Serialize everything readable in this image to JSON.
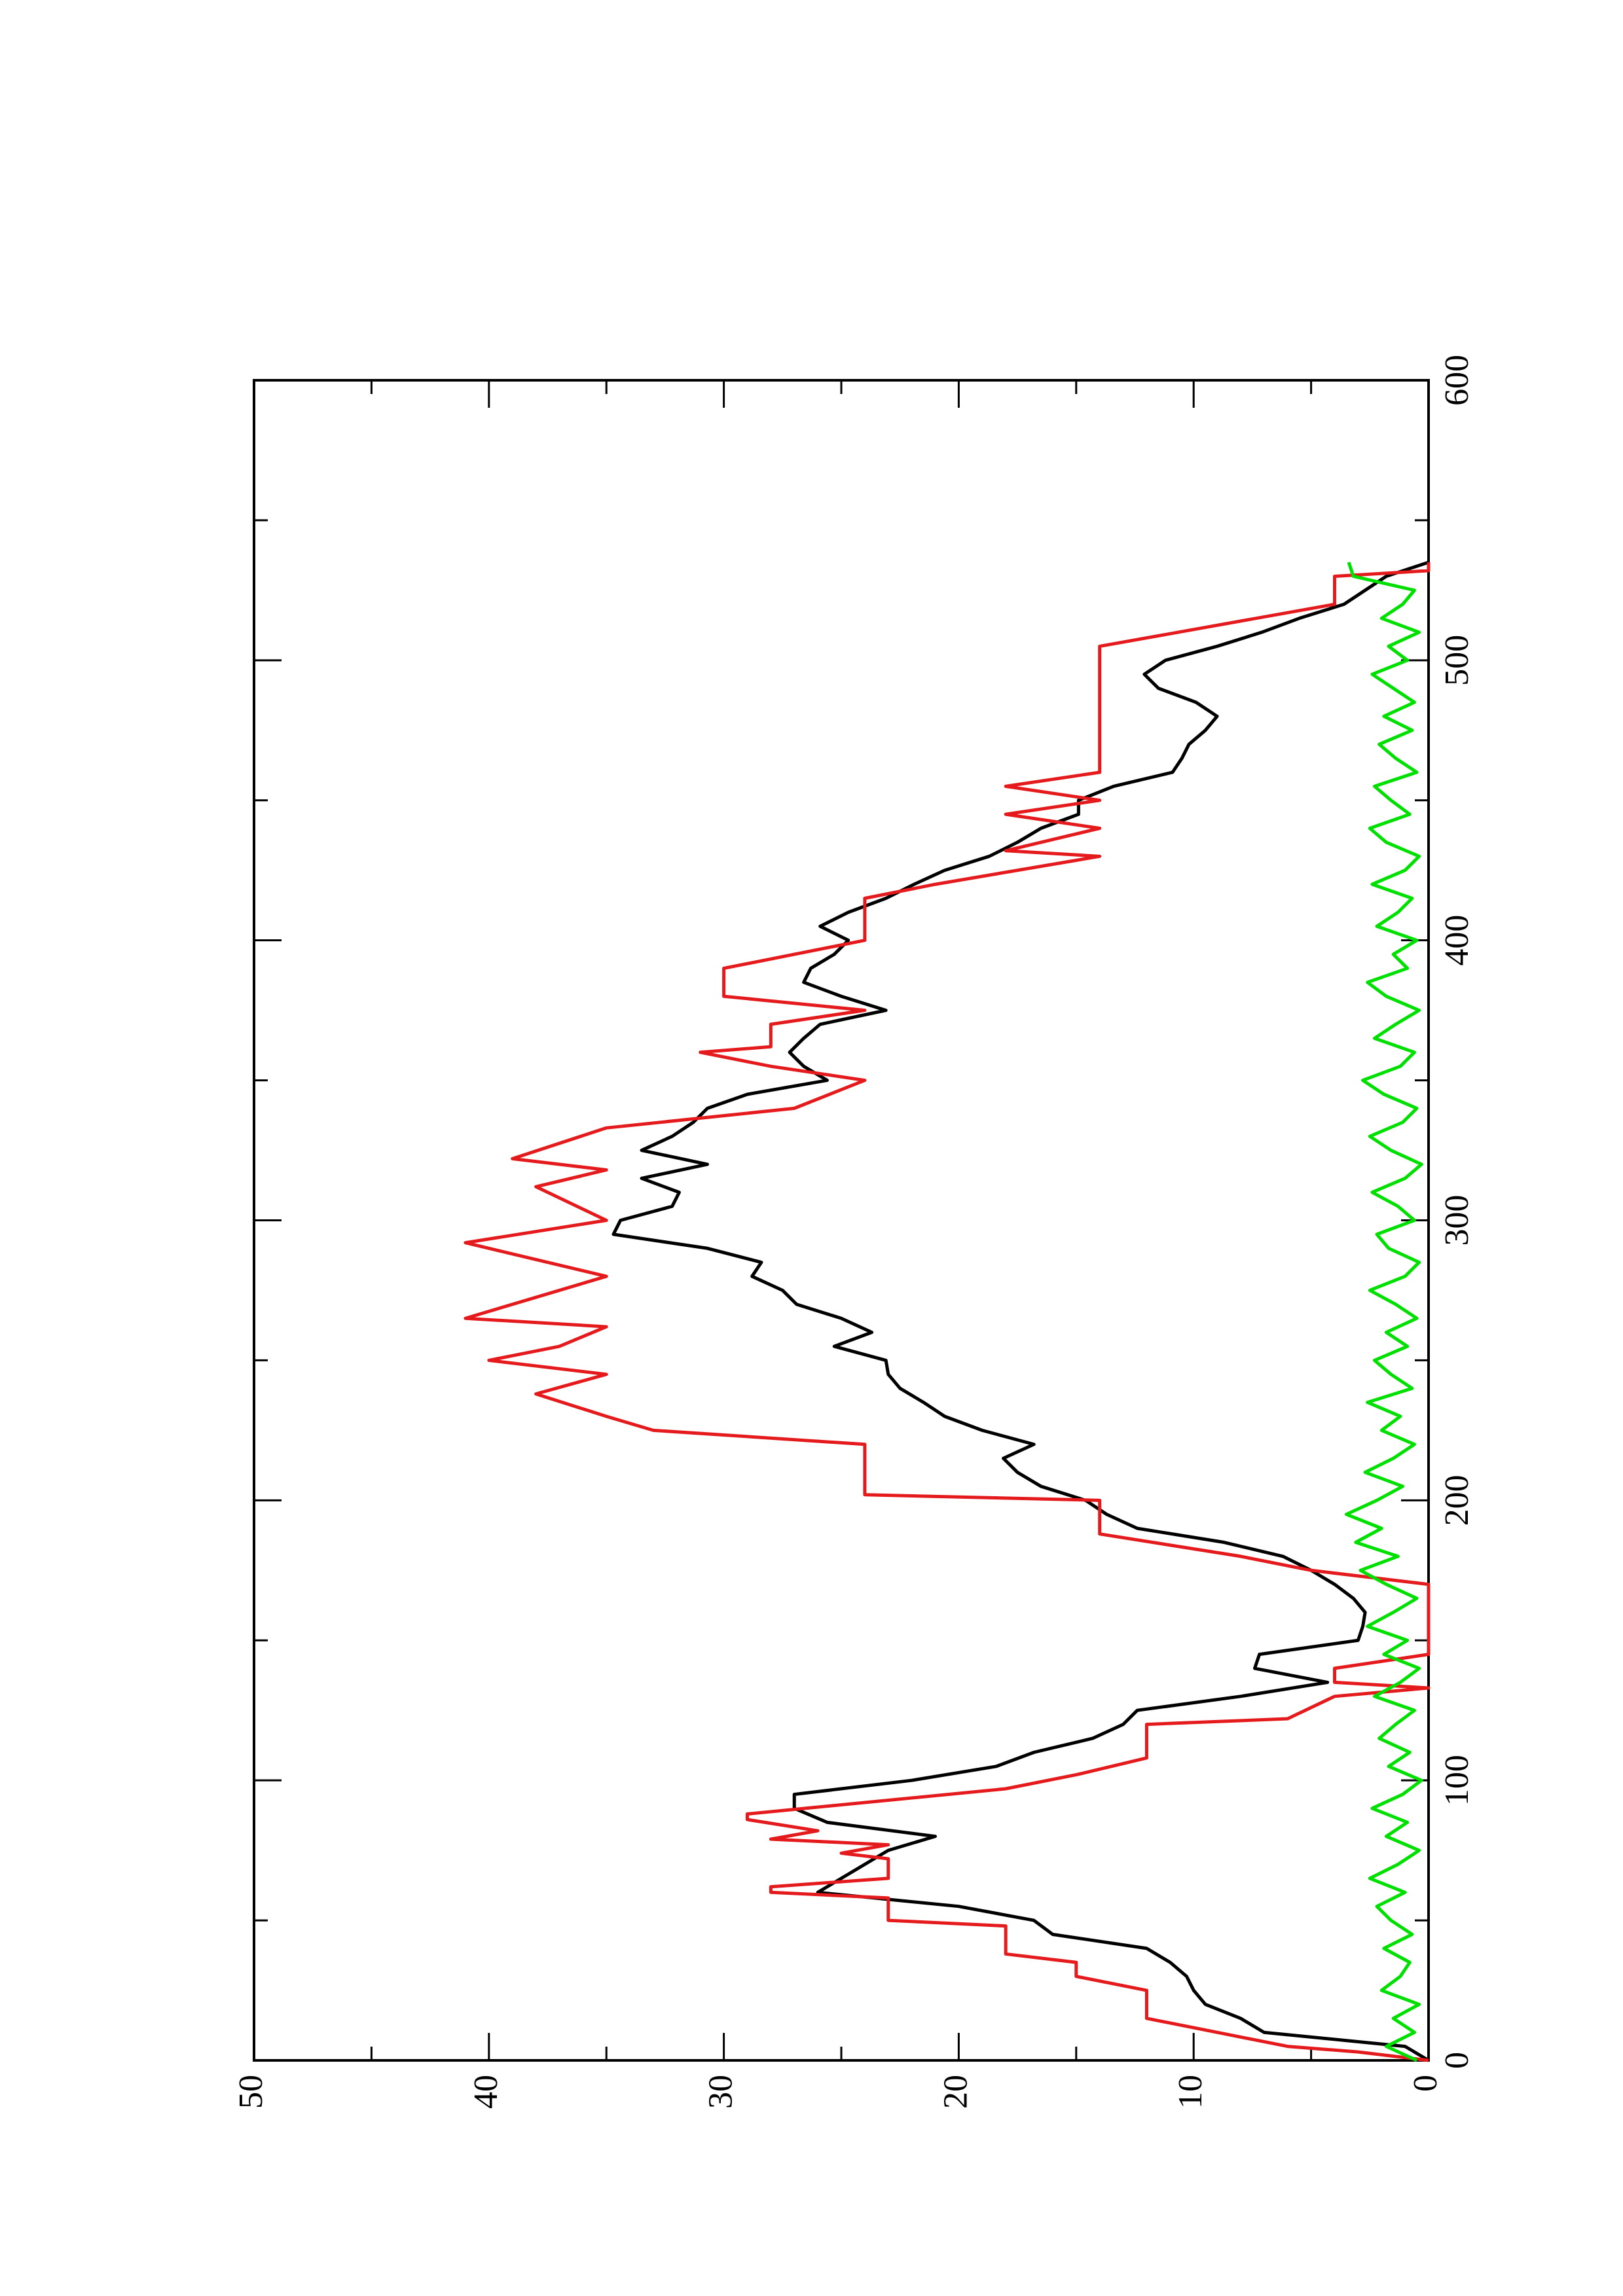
{
  "chart_data": {
    "type": "line",
    "xlim": [
      0,
      600
    ],
    "xticks": [
      0,
      100,
      200,
      300,
      400,
      500,
      600
    ],
    "ylim": [
      0,
      50
    ],
    "yticks": [
      0,
      10,
      20,
      30,
      40,
      50
    ],
    "rotated": true,
    "series": [
      {
        "color": "#000000",
        "x": [
          0,
          5,
          10,
          15,
          20,
          25,
          30,
          35,
          40,
          45,
          50,
          55,
          60,
          65,
          70,
          75,
          80,
          85,
          90,
          95,
          100,
          105,
          110,
          115,
          120,
          125,
          130,
          135,
          140,
          145,
          150,
          155,
          160,
          165,
          170,
          175,
          180,
          185,
          190,
          195,
          200,
          205,
          210,
          215,
          220,
          225,
          230,
          235,
          240,
          245,
          250,
          255,
          260,
          265,
          270,
          275,
          280,
          285,
          290,
          295,
          300,
          305,
          310,
          315,
          320,
          325,
          330,
          335,
          340,
          345,
          350,
          355,
          360,
          365,
          370,
          375,
          380,
          385,
          390,
          395,
          400,
          405,
          410,
          415,
          420,
          425,
          430,
          435,
          440,
          445,
          450,
          455,
          460,
          465,
          470,
          475,
          480,
          485,
          490,
          495,
          500,
          505,
          510,
          515,
          520,
          525,
          530,
          535
        ],
        "values": [
          0,
          1,
          7,
          8,
          9.5,
          10,
          10.3,
          11,
          12,
          16,
          16.8,
          20,
          26,
          25,
          24,
          23,
          21,
          25.6,
          27,
          27,
          22,
          18.4,
          16.8,
          14.3,
          13,
          12.4,
          8,
          4.3,
          7.4,
          7.2,
          3,
          2.8,
          2.7,
          3.2,
          4,
          5,
          6.2,
          8.7,
          12.4,
          13.7,
          14.6,
          16.5,
          17.5,
          18.1,
          16.8,
          19,
          20.6,
          21.5,
          22.5,
          23,
          23.1,
          25.3,
          23.7,
          25,
          26.9,
          27.5,
          28.8,
          28.4,
          30.7,
          34.7,
          34.4,
          32.2,
          31.9,
          33.5,
          30.7,
          33.5,
          32.2,
          31.3,
          30.7,
          29,
          25.6,
          26.6,
          27.2,
          26.6,
          25.9,
          23.1,
          25,
          26.6,
          26.3,
          25.3,
          24.7,
          25.9,
          24.7,
          23.1,
          21.9,
          20.6,
          18.7,
          17.5,
          16.5,
          14.9,
          14.9,
          13.4,
          10.9,
          10.5,
          10.2,
          9.5,
          9,
          9.9,
          11.5,
          12.1,
          11.2,
          9,
          7.1,
          5.5,
          3.6,
          2.7,
          1.8,
          0
        ]
      },
      {
        "color": "#e41a1c",
        "x": [
          0,
          3,
          5,
          10,
          15,
          25,
          30,
          35,
          38,
          48,
          50,
          58,
          60,
          62,
          65,
          72,
          74,
          77,
          79,
          82,
          86,
          88,
          97,
          102,
          108,
          120,
          122,
          130,
          133,
          135,
          140,
          145,
          170,
          175,
          180,
          188,
          200,
          202,
          220,
          225,
          230,
          238,
          245,
          250,
          255,
          262,
          265,
          280,
          292,
          300,
          312,
          318,
          322,
          333,
          340,
          350,
          355,
          360,
          362,
          370,
          375,
          380,
          390,
          395,
          400,
          415,
          420,
          430,
          432,
          440,
          445,
          450,
          455,
          460,
          505,
          520,
          530,
          532,
          535
        ],
        "values": [
          0,
          3,
          6,
          9,
          12,
          12,
          15,
          15,
          18,
          18,
          23,
          23,
          28,
          28,
          23,
          23,
          25,
          23,
          28,
          26,
          29,
          29,
          18,
          15,
          12,
          12,
          6,
          4,
          0,
          4,
          4,
          0,
          0,
          5,
          8,
          14,
          14,
          24,
          24,
          33,
          35,
          38,
          35,
          40,
          37,
          35,
          41,
          35,
          41,
          35,
          38,
          35,
          39,
          35,
          27,
          24,
          28,
          31,
          28,
          28,
          24,
          30,
          30,
          27,
          24,
          24,
          21,
          14,
          18,
          14,
          18,
          14,
          18,
          14,
          14,
          4,
          4,
          0,
          0
        ]
      },
      {
        "color": "#00e000",
        "x": [
          0,
          5,
          10,
          15,
          20,
          25,
          30,
          35,
          40,
          45,
          50,
          55,
          60,
          65,
          70,
          75,
          80,
          85,
          90,
          95,
          100,
          105,
          110,
          115,
          120,
          125,
          130,
          135,
          140,
          145,
          150,
          155,
          160,
          165,
          170,
          175,
          180,
          185,
          190,
          195,
          200,
          205,
          210,
          215,
          220,
          225,
          230,
          235,
          240,
          245,
          250,
          255,
          260,
          265,
          270,
          275,
          280,
          285,
          290,
          295,
          300,
          305,
          310,
          315,
          320,
          325,
          330,
          335,
          340,
          345,
          350,
          355,
          360,
          365,
          370,
          375,
          380,
          385,
          390,
          395,
          400,
          405,
          410,
          415,
          420,
          425,
          430,
          435,
          440,
          445,
          450,
          455,
          460,
          465,
          470,
          475,
          480,
          485,
          490,
          495,
          500,
          505,
          510,
          515,
          520,
          525,
          530,
          535
        ],
        "values": [
          0.5,
          1.8,
          0.6,
          1.5,
          0.4,
          2,
          1.2,
          0.8,
          1.9,
          0.7,
          1.6,
          2.2,
          1,
          2.5,
          1.3,
          0.4,
          1.8,
          0.9,
          2.4,
          1.1,
          0.3,
          1.7,
          0.8,
          2.1,
          1.4,
          0.6,
          2.3,
          1.2,
          0.4,
          1.9,
          0.9,
          2.6,
          1.5,
          0.5,
          1.8,
          2.9,
          1.3,
          3.1,
          2,
          3.5,
          2.2,
          1.1,
          2.7,
          1.5,
          0.6,
          2,
          1.2,
          2.6,
          0.7,
          1.6,
          2.3,
          0.9,
          1.8,
          0.5,
          1.4,
          2.5,
          1,
          0.4,
          1.7,
          2.2,
          0.6,
          1.3,
          2.4,
          1,
          0.3,
          1.6,
          2.5,
          1.1,
          0.5,
          1.9,
          2.8,
          1.2,
          0.6,
          2.3,
          1.4,
          0.4,
          1.8,
          2.6,
          0.9,
          1.5,
          0.5,
          2.2,
          1.3,
          0.7,
          2.4,
          1,
          0.4,
          1.8,
          2.5,
          0.8,
          1.6,
          2.3,
          0.5,
          1.4,
          2.1,
          0.7,
          1.9,
          0.6,
          1.5,
          2.4,
          0.9,
          1.7,
          0.4,
          2,
          1.1,
          0.6,
          3.2,
          3.4
        ]
      }
    ]
  }
}
